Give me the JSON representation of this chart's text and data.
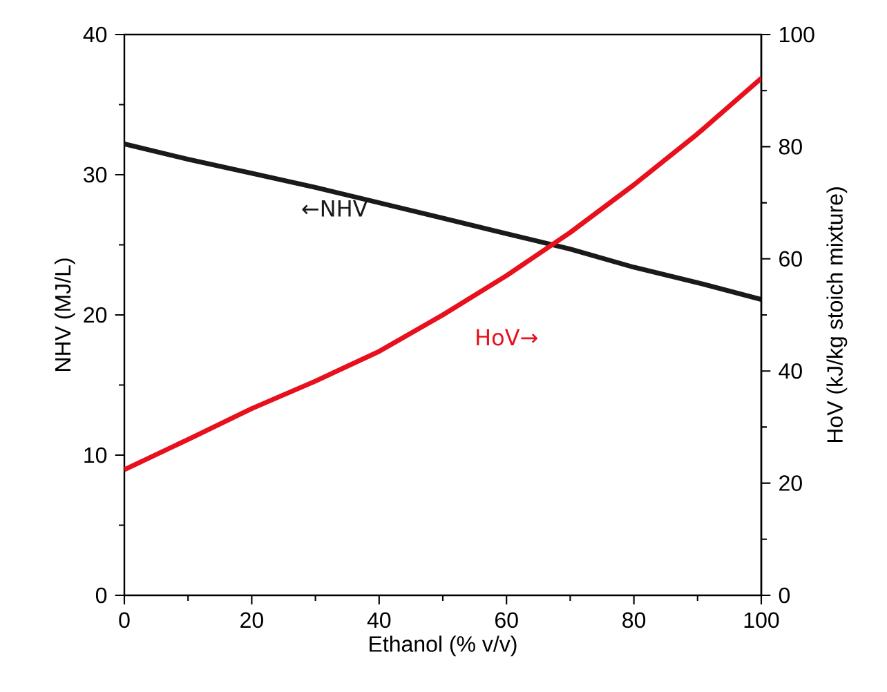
{
  "chart_data": {
    "type": "line",
    "xlabel": "Ethanol (% v/v)",
    "ylabel": "NHV (MJ/L)",
    "y2label": "HoV (kJ/kg stoich mixture)",
    "x": [
      0,
      10,
      20,
      30,
      40,
      50,
      60,
      70,
      80,
      90,
      100
    ],
    "xlim": [
      0,
      100
    ],
    "xticks": [
      0,
      20,
      40,
      60,
      80,
      100
    ],
    "ylim": [
      0,
      40
    ],
    "yticks": [
      0,
      10,
      20,
      30,
      40
    ],
    "y2lim": [
      0,
      100
    ],
    "y2ticks": [
      0,
      20,
      40,
      60,
      80,
      100
    ],
    "series": [
      {
        "name": "←NHV",
        "color": "#1a1a1a",
        "values": [
          32.2,
          31.1,
          30.1,
          29.1,
          28.0,
          26.9,
          25.8,
          24.7,
          23.4,
          22.3,
          21.1
        ]
      },
      {
        "name": "HoV→",
        "color": "#e8101c",
        "axis": "y2",
        "values": [
          22.4,
          27.8,
          33.3,
          38.2,
          43.5,
          50.0,
          57.0,
          64.7,
          73.2,
          82.3,
          92.2
        ]
      }
    ],
    "marker": "none",
    "line_style": "solid"
  }
}
